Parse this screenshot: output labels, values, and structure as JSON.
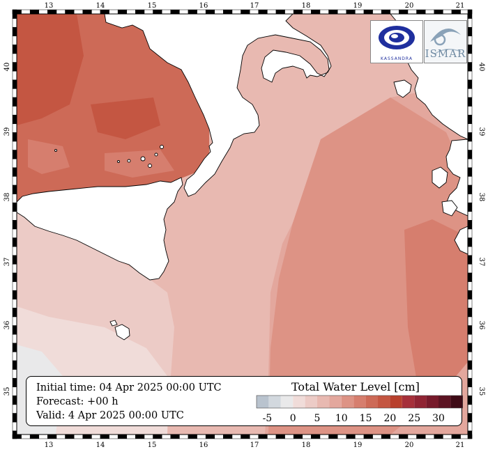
{
  "map": {
    "lon_ticks": [
      "13",
      "14",
      "15",
      "16",
      "17",
      "18",
      "19",
      "20",
      "21"
    ],
    "lat_ticks": [
      "35",
      "36",
      "37",
      "38",
      "39",
      "40"
    ],
    "colors": {
      "land": "#ffffff",
      "coast": "#000000",
      "frame_dark": "#000000",
      "frame_light": "#ffffff"
    }
  },
  "info": {
    "initial_time": "Initial time: 04 Apr 2025 00:00 UTC",
    "forecast": "Forecast: +00 h",
    "valid": "Valid:  4 Apr 2025 00:00 UTC"
  },
  "legend": {
    "title": "Total Water Level [cm]",
    "tick_labels": [
      "-5",
      "0",
      "5",
      "10",
      "15",
      "20",
      "25",
      "30"
    ],
    "colors": [
      "#b9c3ce",
      "#d2d8de",
      "#e9e9ea",
      "#f0dcd9",
      "#eccbc6",
      "#e8b9b1",
      "#e3a79d",
      "#dd9385",
      "#d67e6e",
      "#cd6a57",
      "#c45642",
      "#b8402d",
      "#a6303a",
      "#902433",
      "#771a2b",
      "#5c1322",
      "#3e0b16"
    ]
  },
  "logos": {
    "left": {
      "text": "KASSANDRA",
      "icon": "kassandra-logo"
    },
    "right": {
      "text": "ISMAR",
      "icon": "ismar-logo"
    }
  }
}
